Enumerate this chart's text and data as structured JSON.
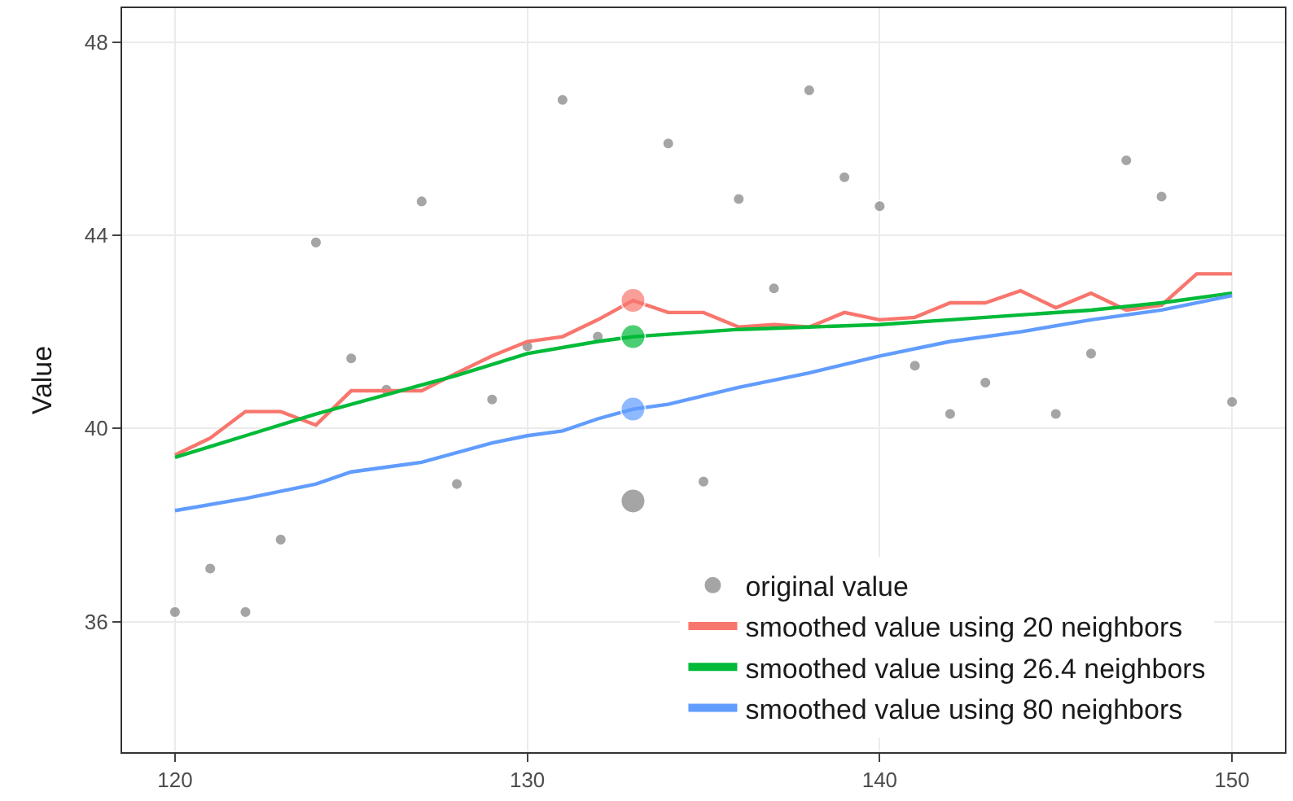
{
  "chart_data": {
    "type": "scatter",
    "ylabel": "Value",
    "xlim": [
      118.5,
      151.5
    ],
    "ylim": [
      33.3,
      48.7
    ],
    "xticks": [
      120,
      130,
      140,
      150
    ],
    "yticks": [
      36,
      40,
      44,
      48
    ],
    "grid": true,
    "legend": "bottom right",
    "series": [
      {
        "name": "original value",
        "color": "#7f7f7f",
        "marker": "circle",
        "x": [
          120,
          121,
          122,
          123,
          124,
          125,
          126,
          127,
          128,
          129,
          130,
          131,
          132,
          133,
          134,
          135,
          136,
          137,
          138,
          139,
          140,
          141,
          142,
          143,
          145,
          146,
          147,
          148,
          150
        ],
        "values": [
          36.2,
          37.1,
          36.2,
          37.7,
          43.85,
          41.45,
          40.8,
          44.7,
          38.85,
          40.6,
          41.7,
          46.8,
          41.9,
          38.5,
          45.9,
          38.9,
          44.75,
          42.9,
          47.0,
          45.2,
          44.6,
          41.3,
          40.3,
          40.95,
          40.3,
          41.55,
          45.55,
          44.8,
          40.55
        ],
        "sizes": [
          0.22,
          0.22,
          0.22,
          0.22,
          0.22,
          0.22,
          0.22,
          0.22,
          0.22,
          0.22,
          0.22,
          0.22,
          0.22,
          1,
          0.22,
          0.22,
          0.22,
          0.22,
          0.22,
          0.22,
          0.22,
          0.22,
          0.22,
          0.22,
          0.22,
          0.22,
          0.22,
          0.22,
          0.22
        ]
      },
      {
        "name": "smoothed value using 20 neighbors",
        "type": "line",
        "color": "#f8766d",
        "marker": "none",
        "x": [
          120,
          121,
          122,
          123,
          124,
          125,
          126,
          127,
          128,
          129,
          130,
          131,
          132,
          133,
          134,
          135,
          136,
          137,
          138,
          139,
          140,
          141,
          142,
          143,
          144,
          145,
          146,
          147,
          148,
          149,
          150
        ],
        "values": [
          39.45,
          39.8,
          40.35,
          40.35,
          40.07,
          40.78,
          40.78,
          40.78,
          41.15,
          41.5,
          41.8,
          41.9,
          42.25,
          42.65,
          42.4,
          42.4,
          42.1,
          42.15,
          42.1,
          42.4,
          42.25,
          42.3,
          42.6,
          42.6,
          42.85,
          42.5,
          42.8,
          42.45,
          42.55,
          43.2,
          43.2
        ]
      },
      {
        "name": "smoothed value using 26.4 neighbors",
        "type": "line",
        "color": "#00ba38",
        "marker": "none",
        "x": [
          120,
          122,
          124,
          126,
          128,
          130,
          132,
          133,
          134,
          136,
          138,
          140,
          142,
          144,
          146,
          148,
          150
        ],
        "values": [
          39.4,
          39.85,
          40.3,
          40.7,
          41.1,
          41.55,
          41.8,
          41.9,
          41.95,
          42.05,
          42.1,
          42.15,
          42.25,
          42.35,
          42.45,
          42.6,
          42.8
        ]
      },
      {
        "name": "smoothed value using 80 neighbors",
        "type": "line",
        "color": "#619cff",
        "marker": "none",
        "x": [
          120,
          122,
          124,
          125,
          127,
          129,
          130,
          131,
          132,
          133,
          134,
          136,
          138,
          140,
          142,
          144,
          146,
          148,
          150
        ],
        "values": [
          38.3,
          38.55,
          38.85,
          39.1,
          39.3,
          39.7,
          39.85,
          39.95,
          40.2,
          40.4,
          40.5,
          40.85,
          41.15,
          41.5,
          41.8,
          42.0,
          42.25,
          42.45,
          42.75
        ]
      },
      {
        "marker": "circle",
        "x": [
          133,
          133,
          133
        ],
        "values": [
          42.65,
          41.9,
          40.4
        ],
        "colors": [
          "#f8766d",
          "#00ba38",
          "#619cff"
        ],
        "sizes": [
          1,
          1,
          1
        ]
      }
    ]
  }
}
